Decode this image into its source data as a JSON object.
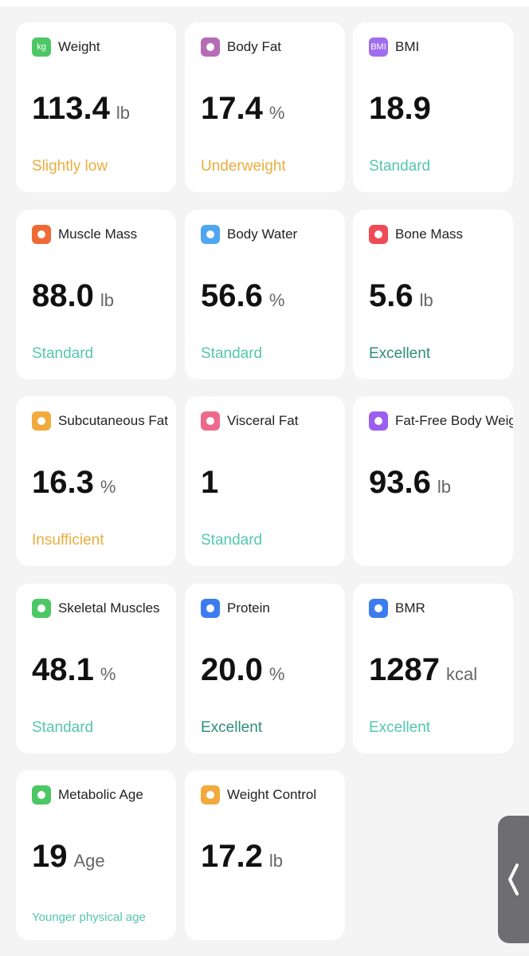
{
  "cards": [
    {
      "title": "Weight",
      "icon_text": "kg",
      "icon_color": "#4cc765",
      "value": "113.4",
      "unit": "lb",
      "status": "Slightly low",
      "status_color": "#e9ad3f"
    },
    {
      "title": "Body Fat",
      "icon_color": "#b66bb5",
      "value": "17.4",
      "unit": "%",
      "status": "Underweight",
      "status_color": "#e9ad3f"
    },
    {
      "title": "BMI",
      "icon_text": "BMI",
      "icon_color": "#a06cf0",
      "value": "18.9",
      "status": "Standard",
      "status_color": "#55c7ad"
    },
    {
      "title": "Muscle Mass",
      "icon_color": "#ef6a35",
      "value": "88.0",
      "unit": "lb",
      "status": "Standard",
      "status_color": "#55c7ad"
    },
    {
      "title": "Body Water",
      "icon_color": "#4fa6f2",
      "value": "56.6",
      "unit": "%",
      "status": "Standard",
      "status_color": "#55c7ad"
    },
    {
      "title": "Bone Mass",
      "icon_color": "#ef4b55",
      "value": "5.6",
      "unit": "lb",
      "status": "Excellent",
      "status_color": "#2f8e78"
    },
    {
      "title": "Subcutaneous Fat",
      "icon_color": "#f1aa3c",
      "value": "16.3",
      "unit": "%",
      "status": "Insufficient",
      "status_color": "#e9ad3f"
    },
    {
      "title": "Visceral Fat",
      "icon_color": "#ee6a8a",
      "value": "1",
      "status": "Standard",
      "status_color": "#55c7ad"
    },
    {
      "title": "Fat-Free Body Weight",
      "icon_color": "#9a5ef0",
      "value": "93.6",
      "unit": "lb"
    },
    {
      "title": "Skeletal Muscles",
      "icon_color": "#4cc765",
      "value": "48.1",
      "unit": "%",
      "status": "Standard",
      "status_color": "#55c7ad"
    },
    {
      "title": "Protein",
      "icon_color": "#3d7cf0",
      "value": "20.0",
      "unit": "%",
      "status": "Excellent",
      "status_color": "#2f8e78"
    },
    {
      "title": "BMR",
      "icon_color": "#3d7cf0",
      "value": "1287",
      "unit": "kcal",
      "status": "Excellent",
      "status_color": "#55c7ad"
    },
    {
      "title": "Metabolic Age",
      "icon_color": "#4cc765",
      "value": "19",
      "unit": "Age",
      "status": "Younger physical age",
      "status_color": "#55c7ad",
      "status_small": true
    },
    {
      "title": "Weight Control",
      "icon_color": "#f1aa3c",
      "value": "17.2",
      "unit": "lb"
    }
  ]
}
